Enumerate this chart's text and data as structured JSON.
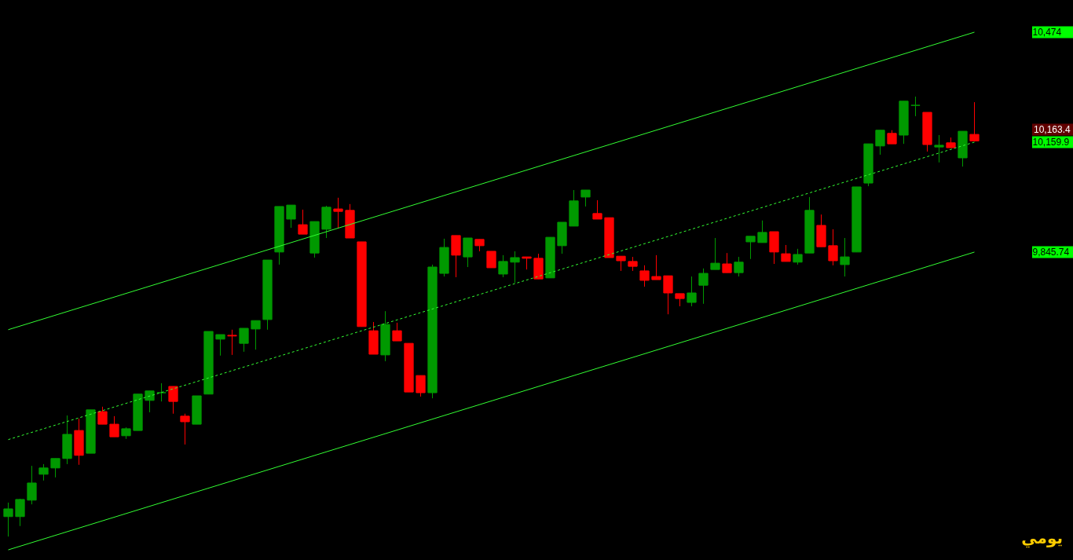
{
  "chart_data": {
    "type": "candlestick",
    "categories": [
      null,
      null,
      null,
      null,
      null,
      null,
      null,
      null,
      null,
      null,
      null,
      null,
      null,
      null,
      null,
      null,
      null,
      null,
      null,
      null,
      null,
      null,
      null,
      null,
      null,
      null,
      null,
      null,
      null,
      null,
      null,
      null,
      null,
      null,
      null,
      null,
      null,
      null,
      null,
      null,
      null,
      null,
      null,
      null,
      null,
      null,
      null,
      null,
      null,
      null,
      null,
      null,
      null,
      null,
      null,
      null,
      null,
      null,
      null,
      null,
      null,
      null,
      null,
      null,
      null,
      null,
      null,
      null,
      null,
      null,
      null,
      null,
      null,
      null,
      null,
      null,
      null,
      null,
      null,
      null,
      null,
      null,
      null
    ],
    "ohlc": [
      [
        9090,
        9130,
        9033,
        9112
      ],
      [
        9090,
        9141,
        9063,
        9139
      ],
      [
        9137,
        9235,
        9125,
        9186
      ],
      [
        9211,
        9240,
        9193,
        9229
      ],
      [
        9229,
        9256,
        9202,
        9256
      ],
      [
        9256,
        9379,
        9240,
        9325
      ],
      [
        9336,
        9370,
        9238,
        9265
      ],
      [
        9271,
        9395,
        9271,
        9395
      ],
      [
        9390,
        9404,
        9354,
        9354
      ],
      [
        9354,
        9377,
        9318,
        9318
      ],
      [
        9321,
        9345,
        9312,
        9341
      ],
      [
        9336,
        9440,
        9336,
        9440
      ],
      [
        9422,
        9449,
        9388,
        9449
      ],
      [
        9444,
        9471,
        9419,
        9444
      ],
      [
        9462,
        9462,
        9384,
        9419
      ],
      [
        9377,
        9384,
        9296,
        9361
      ],
      [
        9354,
        9435,
        9354,
        9435
      ],
      [
        9440,
        9619,
        9440,
        9619
      ],
      [
        9597,
        9610,
        9550,
        9610
      ],
      [
        9608,
        9624,
        9552,
        9606
      ],
      [
        9585,
        9628,
        9561,
        9628
      ],
      [
        9626,
        9650,
        9567,
        9650
      ],
      [
        9653,
        9823,
        9624,
        9823
      ],
      [
        9846,
        9976,
        9810,
        9976
      ],
      [
        9940,
        9980,
        9915,
        9980
      ],
      [
        9924,
        9967,
        9897,
        9897
      ],
      [
        9843,
        9933,
        9830,
        9933
      ],
      [
        9911,
        9978,
        9886,
        9974
      ],
      [
        9969,
        10001,
        9915,
        9962
      ],
      [
        9965,
        9983,
        9886,
        9886
      ],
      [
        9875,
        9875,
        9633,
        9633
      ],
      [
        9621,
        9646,
        9554,
        9554
      ],
      [
        9552,
        9677,
        9534,
        9639
      ],
      [
        9621,
        9644,
        9592,
        9592
      ],
      [
        9585,
        9585,
        9446,
        9446
      ],
      [
        9493,
        9493,
        9433,
        9444
      ],
      [
        9444,
        9810,
        9428,
        9803
      ],
      [
        9785,
        9884,
        9776,
        9859
      ],
      [
        9893,
        9893,
        9774,
        9837
      ],
      [
        9832,
        9886,
        9803,
        9886
      ],
      [
        9882,
        9882,
        9848,
        9864
      ],
      [
        9848,
        9848,
        9801,
        9801
      ],
      [
        9783,
        9837,
        9774,
        9819
      ],
      [
        9817,
        9848,
        9758,
        9830
      ],
      [
        9832,
        9832,
        9796,
        9828
      ],
      [
        9828,
        9841,
        9769,
        9769
      ],
      [
        9772,
        9888,
        9772,
        9888
      ],
      [
        9864,
        9931,
        9841,
        9931
      ],
      [
        9920,
        10023,
        9920,
        9992
      ],
      [
        10003,
        10023,
        9976,
        10023
      ],
      [
        9956,
        9994,
        9940,
        9940
      ],
      [
        9944,
        9944,
        9830,
        9830
      ],
      [
        9834,
        9834,
        9792,
        9821
      ],
      [
        9819,
        9832,
        9792,
        9805
      ],
      [
        9792,
        9808,
        9747,
        9765
      ],
      [
        9776,
        9837,
        9767,
        9767
      ],
      [
        9778,
        9778,
        9668,
        9729
      ],
      [
        9727,
        9727,
        9691,
        9713
      ],
      [
        9702,
        9776,
        9691,
        9729
      ],
      [
        9751,
        9799,
        9698,
        9785
      ],
      [
        9796,
        9886,
        9796,
        9814
      ],
      [
        9812,
        9843,
        9787,
        9787
      ],
      [
        9787,
        9832,
        9776,
        9817
      ],
      [
        9875,
        9891,
        9826,
        9891
      ],
      [
        9873,
        9936,
        9873,
        9902
      ],
      [
        9904,
        9904,
        9812,
        9846
      ],
      [
        9841,
        9866,
        9819,
        9819
      ],
      [
        9817,
        9855,
        9810,
        9839
      ],
      [
        9843,
        10003,
        9843,
        9965
      ],
      [
        9922,
        9953,
        9861,
        9861
      ],
      [
        9864,
        9911,
        9808,
        9821
      ],
      [
        9810,
        9886,
        9776,
        9832
      ],
      [
        9846,
        10032,
        9846,
        10032
      ],
      [
        10043,
        10155,
        10034,
        10155
      ],
      [
        10149,
        10194,
        10124,
        10194
      ],
      [
        10185,
        10194,
        10155,
        10155
      ],
      [
        10180,
        10277,
        10155,
        10277
      ],
      [
        10265,
        10290,
        10234,
        10265
      ],
      [
        10245,
        10245,
        10133,
        10153
      ],
      [
        10146,
        10180,
        10102,
        10151
      ],
      [
        10158,
        10173,
        10144,
        10144
      ],
      [
        10115,
        10191,
        10090,
        10191
      ],
      [
        10182,
        10274,
        10163.4,
        10163.4
      ]
    ],
    "colors": [
      "#009900",
      "#009900",
      "#009900",
      "#009900",
      "#009900",
      "#009900",
      "#ff0000",
      "#009900",
      "#ff0000",
      "#ff0000",
      "#009900",
      "#009900",
      "#009900",
      "#009900",
      "#ff0000",
      "#ff0000",
      "#009900",
      "#009900",
      "#009900",
      "#ff0000",
      "#009900",
      "#009900",
      "#009900",
      "#009900",
      "#009900",
      "#ff0000",
      "#009900",
      "#009900",
      "#ff0000",
      "#ff0000",
      "#ff0000",
      "#ff0000",
      "#009900",
      "#ff0000",
      "#ff0000",
      "#ff0000",
      "#009900",
      "#009900",
      "#ff0000",
      "#009900",
      "#ff0000",
      "#ff0000",
      "#009900",
      "#009900",
      "#ff0000",
      "#ff0000",
      "#009900",
      "#009900",
      "#009900",
      "#009900",
      "#ff0000",
      "#ff0000",
      "#ff0000",
      "#ff0000",
      "#ff0000",
      "#ff0000",
      "#ff0000",
      "#ff0000",
      "#009900",
      "#009900",
      "#009900",
      "#ff0000",
      "#009900",
      "#009900",
      "#009900",
      "#ff0000",
      "#ff0000",
      "#009900",
      "#009900",
      "#ff0000",
      "#ff0000",
      "#009900",
      "#009900",
      "#009900",
      "#009900",
      "#ff0000",
      "#009900",
      "#009900",
      "#ff0000",
      "#009900",
      "#ff0000",
      "#009900",
      "#ff0000"
    ],
    "series": [
      {
        "type": "line",
        "color": "#33ff33",
        "line_style": "solid",
        "values": [
          9624,
          null,
          null,
          null,
          null,
          null,
          null,
          null,
          null,
          null,
          null,
          null,
          null,
          null,
          null,
          null,
          null,
          null,
          null,
          null,
          null,
          null,
          null,
          null,
          null,
          null,
          null,
          null,
          null,
          null,
          null,
          null,
          null,
          null,
          null,
          null,
          null,
          null,
          null,
          null,
          null,
          null,
          null,
          null,
          null,
          null,
          null,
          null,
          null,
          null,
          null,
          null,
          null,
          null,
          null,
          null,
          null,
          null,
          null,
          null,
          null,
          null,
          null,
          null,
          null,
          null,
          null,
          null,
          null,
          null,
          null,
          null,
          null,
          null,
          null,
          null,
          null,
          null,
          null,
          null,
          null,
          null,
          10474
        ]
      },
      {
        "type": "line",
        "color": "#33ff33",
        "line_style": "dashed",
        "values": [
          9310,
          null,
          null,
          null,
          null,
          null,
          null,
          null,
          null,
          null,
          null,
          null,
          null,
          null,
          null,
          null,
          null,
          null,
          null,
          null,
          null,
          null,
          null,
          null,
          null,
          null,
          null,
          null,
          null,
          null,
          null,
          null,
          null,
          null,
          null,
          null,
          null,
          null,
          null,
          null,
          null,
          null,
          null,
          null,
          null,
          null,
          null,
          null,
          null,
          null,
          null,
          null,
          null,
          null,
          null,
          null,
          null,
          null,
          null,
          null,
          null,
          null,
          null,
          null,
          null,
          null,
          null,
          null,
          null,
          null,
          null,
          null,
          null,
          null,
          null,
          null,
          null,
          null,
          null,
          null,
          null,
          null,
          10159.9
        ]
      },
      {
        "type": "line",
        "color": "#33ff33",
        "line_style": "solid",
        "values": [
          8995,
          null,
          null,
          null,
          null,
          null,
          null,
          null,
          null,
          null,
          null,
          null,
          null,
          null,
          null,
          null,
          null,
          null,
          null,
          null,
          null,
          null,
          null,
          null,
          null,
          null,
          null,
          null,
          null,
          null,
          null,
          null,
          null,
          null,
          null,
          null,
          null,
          null,
          null,
          null,
          null,
          null,
          null,
          null,
          null,
          null,
          null,
          null,
          null,
          null,
          null,
          null,
          null,
          null,
          null,
          null,
          null,
          null,
          null,
          null,
          null,
          null,
          null,
          null,
          null,
          null,
          null,
          null,
          null,
          null,
          null,
          null,
          null,
          null,
          null,
          null,
          null,
          null,
          null,
          null,
          null,
          null,
          9845.74
        ]
      }
    ],
    "ylim": [
      8966,
      10566
    ],
    "yticks": [
      {
        "value": 9845.74,
        "label": "9,845.74"
      },
      {
        "value": 10159.9,
        "label": "10,159.9"
      },
      {
        "value": 10474,
        "label": "10,474"
      }
    ],
    "tick_labels": "y",
    "annotations": [
      "10,163.4",
      "يومي"
    ]
  }
}
